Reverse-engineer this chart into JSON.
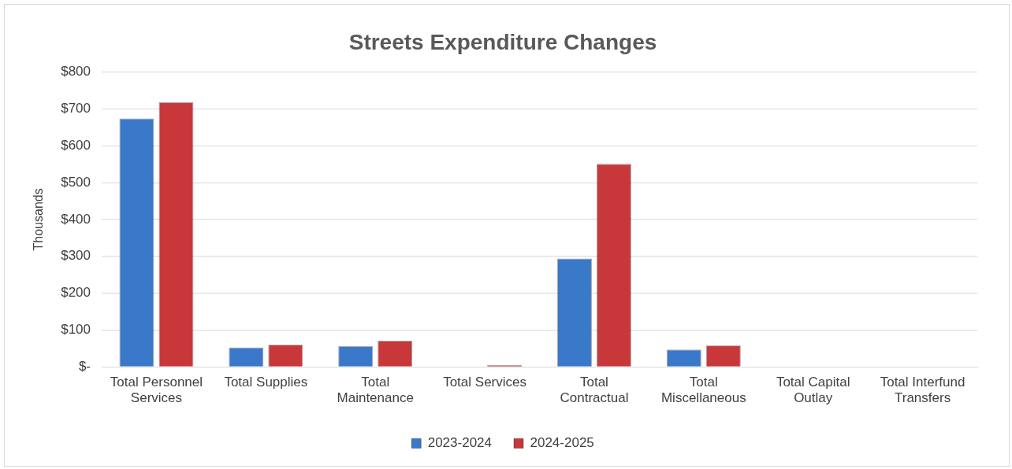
{
  "chart_data": {
    "type": "bar",
    "title": "Streets Expenditure Changes",
    "ylabel": "Thousands",
    "categories": [
      "Total Personnel Services",
      "Total Supplies",
      "Total Maintenance",
      "Total Services",
      "Total Contractual",
      "Total Miscellaneous",
      "Total Capital Outlay",
      "Total Interfund Transfers"
    ],
    "series": [
      {
        "name": "2023-2024",
        "color": "#3a78c9",
        "values": [
          674,
          53,
          56,
          0,
          294,
          47,
          0,
          0
        ]
      },
      {
        "name": "2024-2025",
        "color": "#c8383a",
        "values": [
          718,
          60,
          71,
          5,
          551,
          58,
          0,
          0
        ]
      }
    ],
    "ylim": [
      0,
      800
    ],
    "yticks": [
      {
        "value": 0,
        "label": "$-"
      },
      {
        "value": 100,
        "label": "$100"
      },
      {
        "value": 200,
        "label": "$200"
      },
      {
        "value": 300,
        "label": "$300"
      },
      {
        "value": 400,
        "label": "$400"
      },
      {
        "value": 500,
        "label": "$500"
      },
      {
        "value": 600,
        "label": "$600"
      },
      {
        "value": 700,
        "label": "$700"
      },
      {
        "value": 800,
        "label": "$800"
      }
    ],
    "grid": "y",
    "legend": "bottom"
  }
}
